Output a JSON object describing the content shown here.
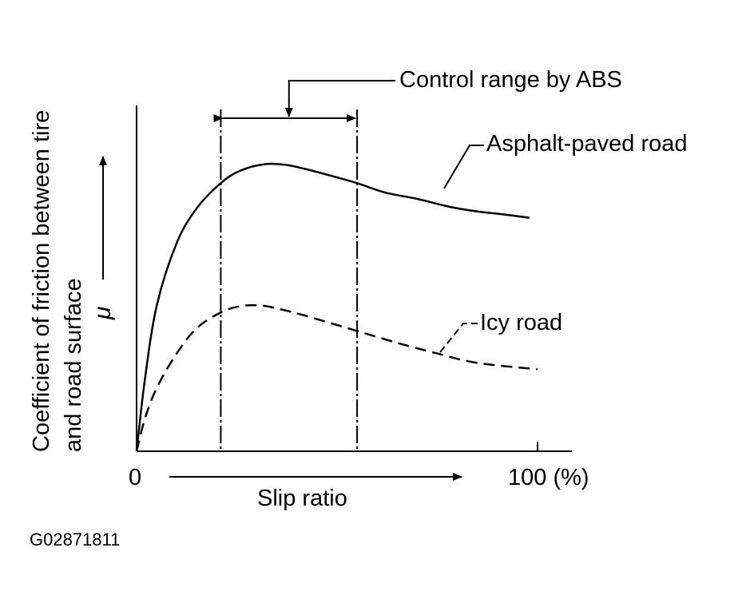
{
  "chart_data": {
    "type": "line",
    "title": "",
    "xlabel": "Slip ratio",
    "ylabel_lines": [
      "Coefficient of friction between tire",
      "and road surface"
    ],
    "ylabel_symbol": "μ",
    "x_ticks": [
      "0",
      "100 (%)"
    ],
    "xlim": [
      0,
      100
    ],
    "ylim": [
      0,
      1
    ],
    "grid": false,
    "series": [
      {
        "name": "Asphalt-paved road",
        "style": "solid",
        "x": [
          0,
          2,
          5,
          10,
          15,
          21,
          26,
          32,
          37,
          42,
          48,
          55,
          62,
          70,
          78,
          85,
          92,
          98
        ],
        "y": [
          0.0,
          0.22,
          0.46,
          0.66,
          0.77,
          0.85,
          0.89,
          0.91,
          0.908,
          0.895,
          0.875,
          0.85,
          0.82,
          0.8,
          0.775,
          0.76,
          0.75,
          0.74
        ]
      },
      {
        "name": "Icy road",
        "style": "dashed",
        "x": [
          0,
          2,
          5,
          10,
          15,
          21,
          26,
          31,
          36,
          42,
          50,
          58,
          66,
          75,
          85,
          100
        ],
        "y": [
          0.0,
          0.1,
          0.2,
          0.31,
          0.39,
          0.44,
          0.46,
          0.462,
          0.45,
          0.43,
          0.4,
          0.37,
          0.34,
          0.31,
          0.28,
          0.26
        ]
      }
    ],
    "control_range": {
      "label": "Control range by ABS",
      "x_start": 21,
      "x_end": 55
    },
    "annotations": [
      {
        "text": "Control range by ABS"
      },
      {
        "text": "Asphalt-paved road"
      },
      {
        "text": "Icy road"
      }
    ]
  },
  "figure_id": "G02871811"
}
